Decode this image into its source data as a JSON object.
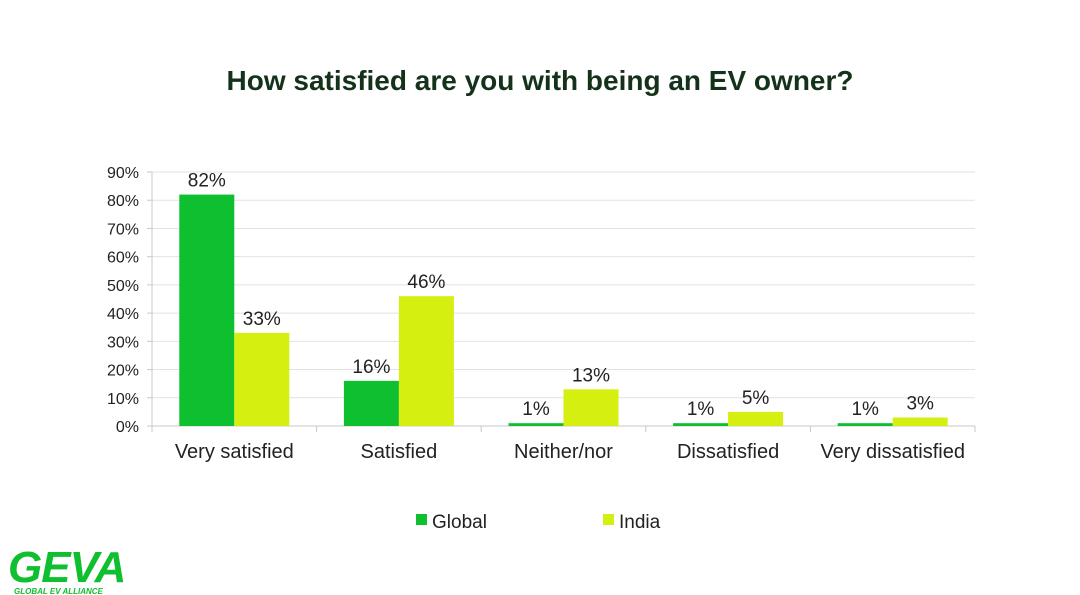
{
  "chart_data": {
    "type": "bar",
    "title": "How satisfied are you with being an EV owner?",
    "categories": [
      "Very satisfied",
      "Satisfied",
      "Neither/nor",
      "Dissatisfied",
      "Very dissatisfied"
    ],
    "series": [
      {
        "name": "Global",
        "values": [
          82,
          16,
          1,
          1,
          1
        ],
        "color": "#0ebf2f"
      },
      {
        "name": "India",
        "values": [
          33,
          46,
          13,
          5,
          3
        ],
        "color": "#d5ef10"
      }
    ],
    "data_labels": [
      [
        "82%",
        "16%",
        "1%",
        "1%",
        "1%"
      ],
      [
        "33%",
        "46%",
        "13%",
        "5%",
        "3%"
      ]
    ],
    "ylim": [
      0,
      90
    ],
    "yticks": [
      0,
      10,
      20,
      30,
      40,
      50,
      60,
      70,
      80,
      90
    ],
    "ytick_labels": [
      "0%",
      "10%",
      "20%",
      "30%",
      "40%",
      "50%",
      "60%",
      "70%",
      "80%",
      "90%"
    ],
    "xlabel": "",
    "ylabel": "",
    "grid": true,
    "legend": "bottom"
  },
  "logo": {
    "name": "GEVA",
    "tagline": "GLOBAL EV ALLIANCE",
    "color": "#0ebf2f",
    "accent": "#d5ef10"
  }
}
